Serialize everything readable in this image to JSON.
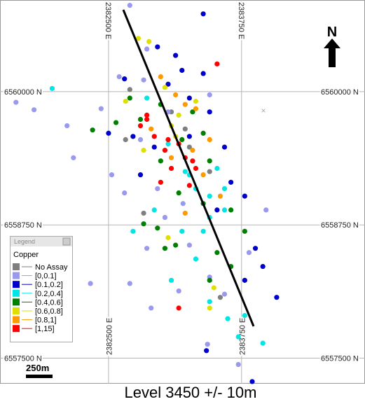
{
  "chart_data": {
    "type": "scatter",
    "title": "Level 3450 +/- 10m",
    "xlim": [
      2381480,
      2384910
    ],
    "ylim": [
      6557260,
      6560860
    ],
    "xticks": [
      {
        "value": 2382500,
        "label": "2382500 E"
      },
      {
        "value": 2383750,
        "label": "2383750 E"
      }
    ],
    "yticks": [
      {
        "value": 6557500,
        "label": "6557500 N"
      },
      {
        "value": 6558750,
        "label": "6558750 N"
      },
      {
        "value": 6560000,
        "label": "6560000 N"
      }
    ],
    "grid": true,
    "legend_header": "Legend",
    "legend_title": "Copper",
    "legend_position": "lower-left",
    "north_label": "N",
    "scale_bar_label": "250m",
    "series": [
      {
        "name": "No Assay",
        "color": "#7f7f7f",
        "x": [
          2382700,
          2383090,
          2383220,
          2382830,
          2383450,
          2383260,
          2383550,
          2382660
        ],
        "y": [
          6560020,
          6559810,
          6559650,
          6558860,
          6559250,
          6559480,
          6558070,
          6559550
        ]
      },
      {
        "name": "[0,0.1]",
        "color": "#9999ee",
        "x": [
          2382700,
          2381630,
          2381800,
          2382170,
          2382330,
          2382700,
          2382530,
          2382430,
          2382650,
          2382860,
          2382900,
          2383160,
          2383260,
          2383450,
          2383590,
          2383980,
          2383820,
          2383430,
          2383720,
          2382860,
          2382800,
          2383060,
          2382600,
          2383030,
          2383200,
          2382960,
          2383450,
          2382830,
          2382110
        ],
        "y": [
          6560810,
          6559900,
          6559830,
          6559380,
          6558200,
          6558200,
          6559220,
          6559840,
          6559050,
          6558530,
          6557970,
          6558130,
          6558560,
          6558260,
          6558100,
          6558890,
          6558490,
          6557630,
          6557440,
          6560400,
          6559550,
          6559810,
          6560140,
          6558820,
          6558950,
          6559090,
          6559970,
          6560110,
          6559680
        ]
      },
      {
        "name": "[0.1,0.2]",
        "color": "#0000cc",
        "x": [
          2382650,
          2382960,
          2383190,
          2383390,
          2383450,
          2383590,
          2383650,
          2383780,
          2383880,
          2383950,
          2384080,
          2383850,
          2383390,
          2383130,
          2382500,
          2382730,
          2383060,
          2383260,
          2383520,
          2383420,
          2383780,
          2383260,
          2382930,
          2382800
        ],
        "y": [
          6560120,
          6560420,
          6560200,
          6560170,
          6559810,
          6559480,
          6559150,
          6559020,
          6558530,
          6558360,
          6558070,
          6557280,
          6560730,
          6560340,
          6559610,
          6559580,
          6560070,
          6559580,
          6558890,
          6557570,
          6558230,
          6559940,
          6559480,
          6559220
        ]
      },
      {
        "name": "[0.2,0.4]",
        "color": "#00e5e5",
        "x": [
          2381970,
          2383060,
          2383220,
          2383320,
          2383450,
          2383590,
          2383390,
          2383190,
          2382930,
          2383320,
          2383450,
          2383620,
          2383780,
          2383950,
          2383720,
          2383090,
          2383260,
          2383520,
          2382730,
          2383450,
          2383590,
          2382860
        ],
        "y": [
          6560030,
          6559510,
          6559250,
          6559090,
          6559020,
          6558890,
          6558690,
          6558690,
          6558890,
          6558430,
          6558030,
          6557870,
          6557900,
          6557640,
          6557700,
          6558230,
          6559220,
          6559280,
          6558690,
          6558820,
          6559090,
          6559940
        ]
      },
      {
        "name": "[0.4,0.6]",
        "color": "#008000",
        "x": [
          2382350,
          2382570,
          2382800,
          2382990,
          2383190,
          2383390,
          2383290,
          2383450,
          2383160,
          2382960,
          2383130,
          2383390,
          2383650,
          2383780,
          2382830,
          2383030,
          2383450,
          2383650,
          2383520,
          2382990,
          2382700
        ],
        "y": [
          6559640,
          6559710,
          6559740,
          6559350,
          6559550,
          6559610,
          6559810,
          6559350,
          6559050,
          6558720,
          6558560,
          6558950,
          6558890,
          6558690,
          6558760,
          6558530,
          6558230,
          6558360,
          6558490,
          6559880,
          6559940
        ]
      },
      {
        "name": "[0.6,0.8]",
        "color": "#e0e000",
        "x": [
          2382780,
          2382880,
          2383030,
          2383160,
          2383320,
          2382830,
          2383090,
          2383490,
          2383450,
          2383130,
          2383060,
          2382660
        ],
        "y": [
          6560500,
          6560470,
          6560040,
          6559780,
          6559910,
          6559450,
          6559680,
          6558160,
          6557970,
          6559580,
          6558630,
          6559910
        ]
      },
      {
        "name": "[0.8,1]",
        "color": "#ff9900",
        "x": [
          2382990,
          2383130,
          2383220,
          2382900,
          2383090,
          2383290,
          2383450,
          2383390,
          2383550,
          2383220,
          2383320
        ],
        "y": [
          6560140,
          6559970,
          6559880,
          6559650,
          6559380,
          6559450,
          6559550,
          6559220,
          6559020,
          6558860,
          6559840
        ]
      },
      {
        "name": "[1,15]",
        "color": "#ff0000",
        "x": [
          2383520,
          2382860,
          2382930,
          2383030,
          2383160,
          2383220,
          2383320,
          2383090,
          2382990,
          2382860,
          2382800,
          2383260,
          2383160,
          2383060,
          2383290
        ],
        "y": [
          6560260,
          6559780,
          6559580,
          6559450,
          6559510,
          6559380,
          6559280,
          6559280,
          6559150,
          6559740,
          6559680,
          6559120,
          6557970,
          6559550,
          6559350
        ]
      }
    ]
  }
}
